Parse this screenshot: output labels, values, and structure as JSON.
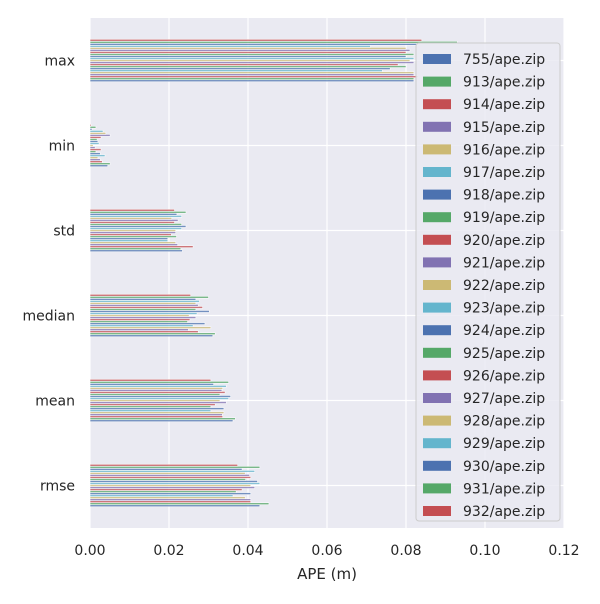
{
  "chart_data": {
    "type": "bar",
    "orientation": "horizontal",
    "title": "",
    "xlabel": "APE (m)",
    "ylabel": "",
    "xlim": [
      0,
      0.12
    ],
    "xticks": [
      "0.00",
      "0.02",
      "0.04",
      "0.06",
      "0.08",
      "0.10",
      "0.12"
    ],
    "grid": true,
    "legend_position": "right",
    "categories": [
      "max",
      "min",
      "std",
      "median",
      "mean",
      "rmse"
    ],
    "colors": [
      "#4C72B0",
      "#55A868",
      "#C44E52",
      "#8172B2",
      "#CCB974",
      "#64B5CD"
    ],
    "series_names": [
      "755/ape.zip",
      "913/ape.zip",
      "914/ape.zip",
      "915/ape.zip",
      "916/ape.zip",
      "917/ape.zip",
      "918/ape.zip",
      "919/ape.zip",
      "920/ape.zip",
      "921/ape.zip",
      "922/ape.zip",
      "923/ape.zip",
      "924/ape.zip",
      "925/ape.zip",
      "926/ape.zip",
      "927/ape.zip",
      "928/ape.zip",
      "929/ape.zip",
      "930/ape.zip",
      "931/ape.zip",
      "932/ape.zip"
    ],
    "values_by_category": {
      "max": [
        0.082,
        0.082,
        0.083,
        0.082,
        0.082,
        0.074,
        0.076,
        0.08,
        0.078,
        0.082,
        0.081,
        0.082,
        0.08,
        0.082,
        0.08,
        0.081,
        0.08,
        0.071,
        0.083,
        0.093,
        0.084
      ],
      "min": [
        0.0045,
        0.0051,
        0.0031,
        0.0026,
        0.002,
        0.0038,
        0.0026,
        0.0015,
        0.0028,
        0.0013,
        0.0008,
        0.0023,
        0.002,
        0.0018,
        0.0028,
        0.0051,
        0.004,
        0.0033,
        0.0005,
        0.0015,
        0.0003
      ],
      "std": [
        0.0234,
        0.023,
        0.0261,
        0.0222,
        0.0217,
        0.0197,
        0.0197,
        0.0219,
        0.0206,
        0.0217,
        0.0217,
        0.0232,
        0.0243,
        0.0232,
        0.0214,
        0.0223,
        0.0207,
        0.0232,
        0.022,
        0.0243,
        0.0214
      ],
      "median": [
        0.0311,
        0.0317,
        0.0274,
        0.0249,
        0.0306,
        0.0261,
        0.0291,
        0.0247,
        0.0253,
        0.0268,
        0.0251,
        0.0271,
        0.0302,
        0.0268,
        0.0285,
        0.0274,
        0.0268,
        0.0277,
        0.0268,
        0.03,
        0.0255
      ],
      "mean": [
        0.0362,
        0.0368,
        0.0336,
        0.0335,
        0.0339,
        0.0306,
        0.0339,
        0.0306,
        0.0317,
        0.0345,
        0.0329,
        0.0351,
        0.0356,
        0.0329,
        0.0342,
        0.0334,
        0.0336,
        0.0345,
        0.0313,
        0.0351,
        0.0306
      ],
      "rmse": [
        0.043,
        0.0453,
        0.0407,
        0.0407,
        0.0393,
        0.0362,
        0.0407,
        0.037,
        0.0385,
        0.0417,
        0.0407,
        0.043,
        0.0424,
        0.0394,
        0.0407,
        0.0404,
        0.0393,
        0.0417,
        0.0385,
        0.043,
        0.0374
      ]
    }
  }
}
